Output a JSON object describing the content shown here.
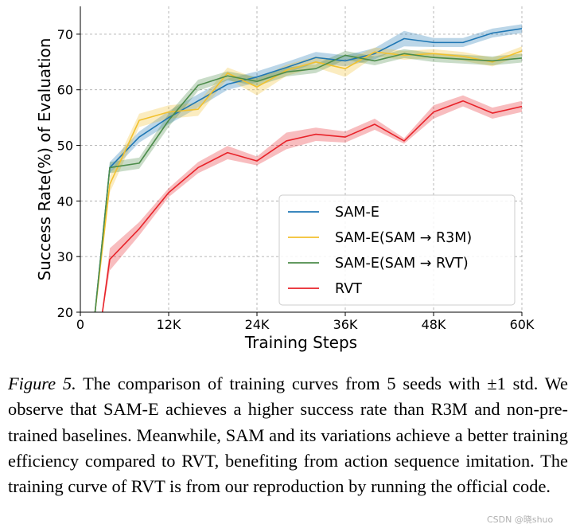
{
  "chart_data": {
    "type": "line",
    "title": "",
    "xlabel": "Training Steps",
    "ylabel": "Success Rate(%) of Evaluation",
    "xlim": [
      0,
      60
    ],
    "ylim": [
      20,
      75
    ],
    "x_ticks": [
      0,
      12,
      24,
      36,
      48,
      60
    ],
    "x_tick_labels": [
      "0",
      "12K",
      "24K",
      "36K",
      "48K",
      "60K"
    ],
    "y_ticks": [
      20,
      30,
      40,
      50,
      60,
      70
    ],
    "y_tick_labels": [
      "20",
      "30",
      "40",
      "50",
      "60",
      "70"
    ],
    "x_unit": "K steps",
    "grid": true,
    "shaded_band": "±1 std",
    "legend_position": "lower-right",
    "series": [
      {
        "name": "SAM-E",
        "color": "#1f77b4",
        "x": [
          2,
          4,
          8,
          12,
          16,
          20,
          24,
          28,
          32,
          36,
          40,
          44,
          48,
          52,
          56,
          60
        ],
        "values": [
          20,
          46,
          51.5,
          55,
          58,
          61,
          62.3,
          64,
          65.8,
          65.2,
          66.5,
          69.2,
          68.5,
          68.5,
          70.2,
          71
        ],
        "std": [
          0.5,
          1.0,
          1.0,
          1.2,
          1.2,
          1.0,
          1.0,
          1.0,
          1.0,
          1.0,
          1.0,
          1.4,
          0.8,
          0.8,
          0.8,
          0.8
        ]
      },
      {
        "name": "SAM-E(SAM → R3M)",
        "color": "#f2c12e",
        "x": [
          2,
          4,
          8,
          12,
          16,
          20,
          24,
          28,
          32,
          36,
          40,
          44,
          48,
          52,
          56,
          60
        ],
        "values": [
          20,
          43,
          54.5,
          56,
          56.5,
          63,
          60.5,
          63.5,
          65,
          63.8,
          66.8,
          66.2,
          66.5,
          66,
          65,
          67
        ],
        "std": [
          0.5,
          1.5,
          1.2,
          1.2,
          1.2,
          1.0,
          1.5,
          1.0,
          1.0,
          1.5,
          0.8,
          0.8,
          0.8,
          0.8,
          0.8,
          0.8
        ]
      },
      {
        "name": "SAM-E(SAM → RVT)",
        "color": "#4c8c4a",
        "x": [
          2,
          4,
          8,
          12,
          16,
          20,
          24,
          28,
          32,
          36,
          40,
          44,
          48,
          52,
          56,
          60
        ],
        "values": [
          20,
          46,
          46.8,
          54.5,
          60.8,
          62.5,
          61.5,
          63.2,
          63.8,
          66.2,
          65.2,
          66.5,
          65.8,
          65.5,
          65.2,
          65.7
        ],
        "std": [
          0.5,
          1.0,
          1.0,
          1.2,
          1.0,
          0.8,
          0.8,
          0.8,
          0.8,
          0.8,
          0.8,
          0.8,
          0.8,
          0.8,
          0.8,
          0.8
        ]
      },
      {
        "name": "RVT",
        "color": "#e8232a",
        "x": [
          3,
          4,
          8,
          12,
          16,
          20,
          24,
          28,
          32,
          36,
          40,
          44,
          48,
          52,
          56,
          60
        ],
        "values": [
          20,
          29.5,
          35,
          41.5,
          46,
          48.7,
          47.2,
          50.8,
          52,
          51.5,
          53.8,
          50.8,
          56,
          58,
          55.8,
          57
        ],
        "std": [
          0.5,
          2.0,
          1.2,
          0.8,
          1.0,
          1.2,
          0.8,
          1.5,
          1.2,
          1.0,
          1.0,
          0.5,
          1.2,
          1.0,
          1.0,
          1.0
        ]
      }
    ]
  },
  "caption": {
    "label": "Figure 5.",
    "text": "The comparison of training curves from 5 seeds with ±1 std. We observe that SAM-E achieves a higher success rate than R3M and non-pre-trained baselines. Meanwhile, SAM and its variations achieve a better training efficiency compared to RVT, benefiting from action sequence imitation. The training curve of RVT is from our reproduction by running the official code."
  },
  "watermark": "CSDN @晓shuo"
}
